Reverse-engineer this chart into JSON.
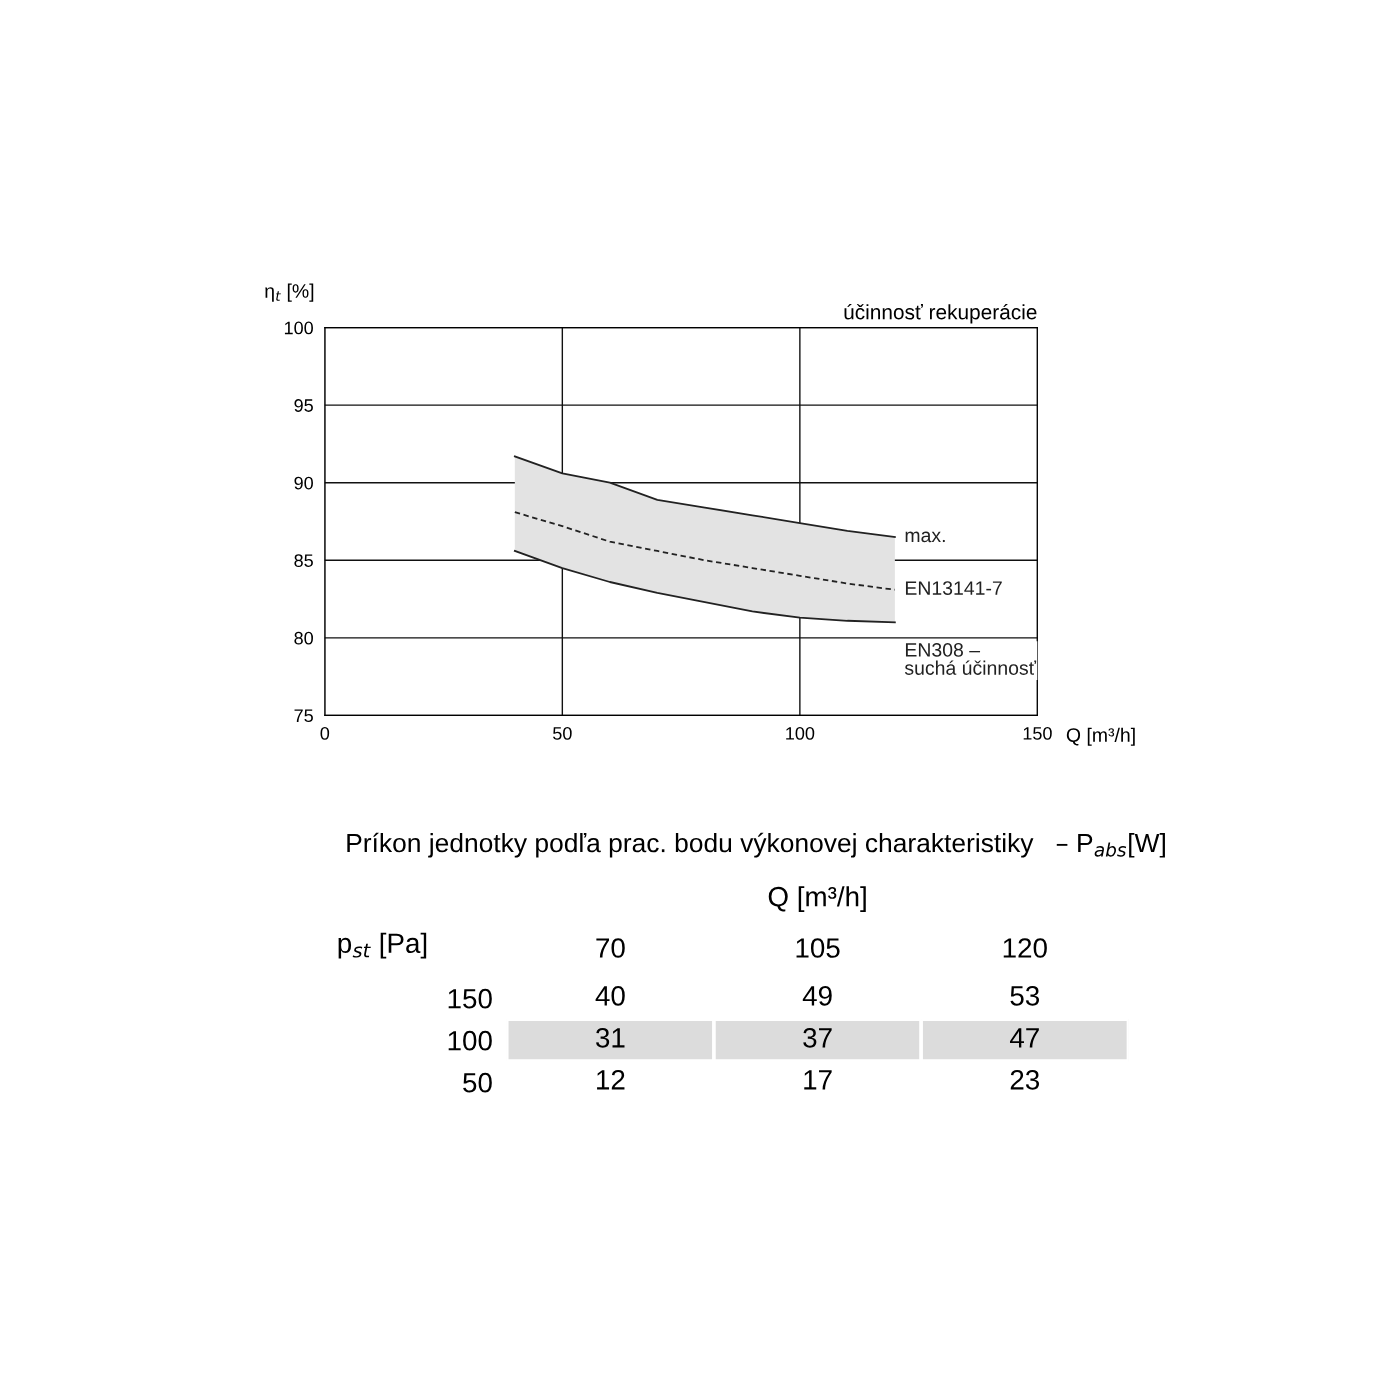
{
  "chart_data": [
    {
      "type": "line",
      "title": "účinnosť rekuperácie",
      "xlabel": "Q [m³/h]",
      "ylabel": "η$_{t}$ [%]",
      "xlim": [
        0,
        150
      ],
      "xticks": [
        0,
        50,
        100,
        150
      ],
      "ylim": [
        75,
        100
      ],
      "yticks": [
        75,
        80,
        85,
        90,
        95,
        100
      ],
      "grid": true,
      "legend": false,
      "x": [
        40,
        50,
        60,
        70,
        80,
        90,
        100,
        110,
        120
      ],
      "series": [
        {
          "name": "max.",
          "color": "#222222",
          "line_style": "solid",
          "values": [
            91.7,
            90.6,
            90.0,
            88.9,
            88.4,
            87.9,
            87.4,
            86.9,
            86.5
          ]
        },
        {
          "name": "EN13141-7",
          "color": "#222222",
          "line_style": "dashed",
          "values": [
            88.1,
            87.2,
            86.2,
            85.6,
            85.0,
            84.5,
            84.0,
            83.5,
            83.1
          ],
          "lower": [
            85.6,
            84.5,
            83.6,
            82.9,
            82.3,
            81.7,
            81.3,
            81.1,
            81.0
          ],
          "upper": [
            91.7,
            90.6,
            90.0,
            88.9,
            88.4,
            87.9,
            87.4,
            86.9,
            86.5
          ]
        },
        {
          "name": "EN308 –\nsuchá účinnosť",
          "color": "#222222",
          "line_style": "solid",
          "values": [
            85.6,
            84.5,
            83.6,
            82.9,
            82.3,
            81.7,
            81.3,
            81.1,
            81.0
          ]
        }
      ]
    },
    {
      "type": "heatmap",
      "title": "Príkon jednotky podľa prac. bodu výkonovej charakteristiky   – P$_{abs}$[W]",
      "xlabel": "Q [m³/h]",
      "ylabel": "p$_{st}$ [Pa]",
      "categories": [
        "70",
        "105",
        "120"
      ],
      "y_categories": [
        "150",
        "100",
        "50"
      ],
      "cells": [
        [
          40,
          49,
          53
        ],
        [
          31,
          37,
          47
        ],
        [
          12,
          17,
          23
        ]
      ],
      "data_labels": true
    }
  ]
}
